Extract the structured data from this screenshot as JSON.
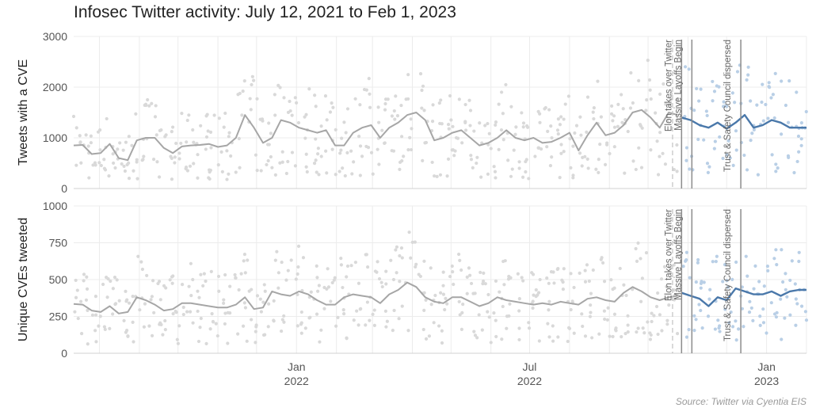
{
  "title": "Infosec Twitter activity: July 12, 2021 to Feb 1, 2023",
  "source": "Source: Twitter via Cyentia EIS",
  "colors": {
    "before": "#a6a6a6",
    "after": "#4a78aa",
    "before_points": "#d9d9d9",
    "after_points": "#b9cfe6",
    "grid": "#ececec"
  },
  "chart_data": [
    {
      "type": "line",
      "title": "",
      "ylabel": "Tweets with a CVE",
      "ylim": [
        0,
        3000
      ],
      "yticks": [
        0,
        1000,
        2000,
        3000
      ],
      "xlim": [
        "2021-07-12",
        "2023-02-01"
      ],
      "xticks": [
        {
          "date": "2022-01-01",
          "label": "Jan",
          "year": "2022"
        },
        {
          "date": "2022-07-01",
          "label": "Jul",
          "year": "2022"
        },
        {
          "date": "2023-01-01",
          "label": "Jan",
          "year": "2023"
        }
      ],
      "series": [
        {
          "x": [
            "2021-07-12",
            "2021-07-19",
            "2021-07-26",
            "2021-08-02",
            "2021-08-09",
            "2021-08-16",
            "2021-08-23",
            "2021-08-30",
            "2021-09-06",
            "2021-09-13",
            "2021-09-20",
            "2021-09-27",
            "2021-10-04",
            "2021-10-11",
            "2021-10-18",
            "2021-10-25",
            "2021-11-01",
            "2021-11-08",
            "2021-11-15",
            "2021-11-22",
            "2021-11-29",
            "2021-12-06",
            "2021-12-13",
            "2021-12-20",
            "2021-12-27",
            "2022-01-03",
            "2022-01-10",
            "2022-01-17",
            "2022-01-24",
            "2022-01-31",
            "2022-02-07",
            "2022-02-14",
            "2022-02-21",
            "2022-02-28",
            "2022-03-07",
            "2022-03-14",
            "2022-03-21",
            "2022-03-28",
            "2022-04-04",
            "2022-04-11",
            "2022-04-18",
            "2022-04-25",
            "2022-05-02",
            "2022-05-09",
            "2022-05-16",
            "2022-05-23",
            "2022-05-30",
            "2022-06-06",
            "2022-06-13",
            "2022-06-20",
            "2022-06-27",
            "2022-07-04",
            "2022-07-11",
            "2022-07-18",
            "2022-07-25",
            "2022-08-01",
            "2022-08-08",
            "2022-08-15",
            "2022-08-22",
            "2022-08-29",
            "2022-09-05",
            "2022-09-12",
            "2022-09-19",
            "2022-09-26",
            "2022-10-03",
            "2022-10-10",
            "2022-10-17",
            "2022-10-24"
          ],
          "y": [
            850,
            860,
            680,
            700,
            880,
            600,
            560,
            950,
            1000,
            1000,
            800,
            700,
            830,
            850,
            860,
            880,
            820,
            850,
            1000,
            1450,
            1200,
            900,
            1000,
            1350,
            1300,
            1200,
            1150,
            1100,
            1150,
            850,
            850,
            1100,
            1200,
            1250,
            1000,
            1200,
            1300,
            1450,
            1500,
            1350,
            950,
            1000,
            1100,
            1150,
            1000,
            850,
            900,
            1000,
            1150,
            1000,
            950,
            1000,
            900,
            920,
            1000,
            1100,
            750,
            1050,
            1300,
            1050,
            1100,
            1250,
            1500,
            1550,
            1400,
            1200,
            1500,
            1450
          ]
        },
        {
          "x": [
            "2022-10-27",
            "2022-11-03",
            "2022-11-10",
            "2022-11-17",
            "2022-11-24",
            "2022-12-01",
            "2022-12-08",
            "2022-12-15",
            "2022-12-22",
            "2022-12-29",
            "2023-01-05",
            "2023-01-12",
            "2023-01-19",
            "2023-01-26",
            "2023-02-01"
          ],
          "y": [
            1400,
            1350,
            1250,
            1200,
            1300,
            1180,
            1300,
            1450,
            1200,
            1250,
            1350,
            1300,
            1200,
            1200,
            1200
          ]
        }
      ],
      "events": [
        {
          "date": "2022-10-27",
          "label": [
            "Elon takes over Twitter",
            "Massive Layoffs Begin"
          ],
          "style": "solid"
        },
        {
          "date": "2022-11-04",
          "label": [],
          "style": "solid"
        },
        {
          "date": "2022-12-12",
          "label": [
            "Trust & Safety Council dispersed"
          ],
          "style": "solid"
        },
        {
          "date": "2022-10-20",
          "label": [],
          "style": "dashed"
        }
      ]
    },
    {
      "type": "line",
      "title": "",
      "ylabel": "Unique CVEs tweeted",
      "ylim": [
        0,
        1000
      ],
      "yticks": [
        0,
        250,
        500,
        750,
        1000
      ],
      "xlim": [
        "2021-07-12",
        "2023-02-01"
      ],
      "xticks": [
        {
          "date": "2022-01-01",
          "label": "Jan",
          "year": "2022"
        },
        {
          "date": "2022-07-01",
          "label": "Jul",
          "year": "2022"
        },
        {
          "date": "2023-01-01",
          "label": "Jan",
          "year": "2023"
        }
      ],
      "series": [
        {
          "x": [
            "2021-07-12",
            "2021-07-19",
            "2021-07-26",
            "2021-08-02",
            "2021-08-09",
            "2021-08-16",
            "2021-08-23",
            "2021-08-30",
            "2021-09-06",
            "2021-09-13",
            "2021-09-20",
            "2021-09-27",
            "2021-10-04",
            "2021-10-11",
            "2021-10-18",
            "2021-10-25",
            "2021-11-01",
            "2021-11-08",
            "2021-11-15",
            "2021-11-22",
            "2021-11-29",
            "2021-12-06",
            "2021-12-13",
            "2021-12-20",
            "2021-12-27",
            "2022-01-03",
            "2022-01-10",
            "2022-01-17",
            "2022-01-24",
            "2022-01-31",
            "2022-02-07",
            "2022-02-14",
            "2022-02-21",
            "2022-02-28",
            "2022-03-07",
            "2022-03-14",
            "2022-03-21",
            "2022-03-28",
            "2022-04-04",
            "2022-04-11",
            "2022-04-18",
            "2022-04-25",
            "2022-05-02",
            "2022-05-09",
            "2022-05-16",
            "2022-05-23",
            "2022-05-30",
            "2022-06-06",
            "2022-06-13",
            "2022-06-20",
            "2022-06-27",
            "2022-07-04",
            "2022-07-11",
            "2022-07-18",
            "2022-07-25",
            "2022-08-01",
            "2022-08-08",
            "2022-08-15",
            "2022-08-22",
            "2022-08-29",
            "2022-09-05",
            "2022-09-12",
            "2022-09-19",
            "2022-09-26",
            "2022-10-03",
            "2022-10-10",
            "2022-10-17",
            "2022-10-24"
          ],
          "y": [
            335,
            330,
            290,
            280,
            320,
            270,
            280,
            380,
            360,
            330,
            290,
            300,
            340,
            340,
            330,
            320,
            310,
            310,
            330,
            380,
            300,
            310,
            420,
            400,
            390,
            420,
            400,
            360,
            330,
            330,
            380,
            400,
            390,
            380,
            340,
            400,
            430,
            480,
            450,
            380,
            350,
            340,
            380,
            380,
            350,
            320,
            340,
            380,
            360,
            350,
            340,
            330,
            340,
            330,
            350,
            340,
            330,
            370,
            380,
            360,
            350,
            410,
            450,
            420,
            380,
            360,
            380,
            390
          ]
        },
        {
          "x": [
            "2022-10-27",
            "2022-11-03",
            "2022-11-10",
            "2022-11-17",
            "2022-11-24",
            "2022-12-01",
            "2022-12-08",
            "2022-12-15",
            "2022-12-22",
            "2022-12-29",
            "2023-01-05",
            "2023-01-12",
            "2023-01-19",
            "2023-01-26",
            "2023-02-01"
          ],
          "y": [
            410,
            390,
            370,
            320,
            380,
            360,
            440,
            420,
            400,
            400,
            420,
            390,
            420,
            430,
            430
          ]
        }
      ],
      "events": [
        {
          "date": "2022-10-27",
          "label": [
            "Elon takes over Twitter",
            "Massive Layoffs Begin"
          ],
          "style": "solid"
        },
        {
          "date": "2022-11-04",
          "label": [],
          "style": "solid"
        },
        {
          "date": "2022-12-12",
          "label": [
            "Trust & Safety Council dispersed"
          ],
          "style": "solid"
        },
        {
          "date": "2022-10-20",
          "label": [],
          "style": "dashed"
        }
      ]
    }
  ]
}
